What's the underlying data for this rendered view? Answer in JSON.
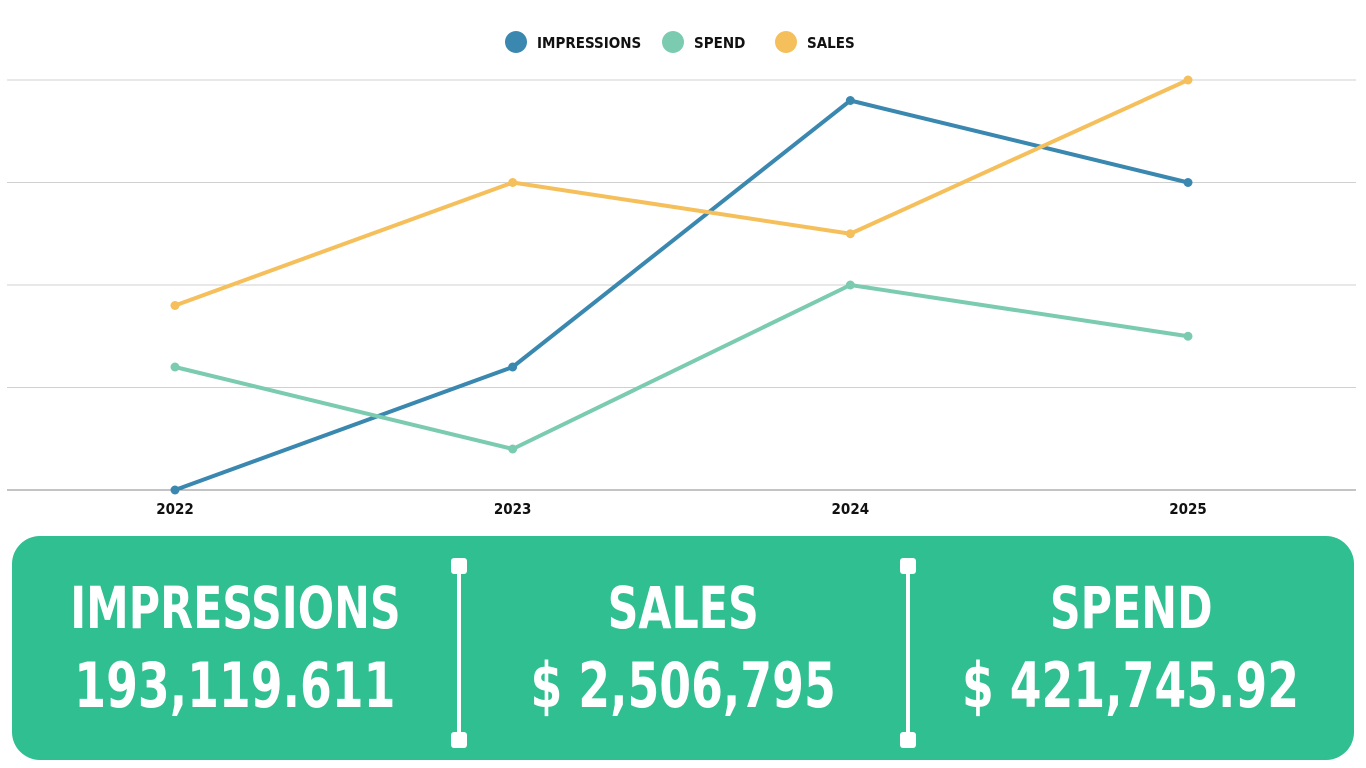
{
  "colors": {
    "impressions": "#3a87b0",
    "spend": "#7acbb0",
    "sales": "#f5bf5b",
    "panel": "#2fbf90",
    "grid": "#d0d0d0",
    "axis": "#888888"
  },
  "chart_data": {
    "type": "line",
    "title": "",
    "xlabel": "",
    "ylabel": "",
    "categories": [
      "2022",
      "2023",
      "2024",
      "2025"
    ],
    "ylim": [
      0,
      4
    ],
    "grid": true,
    "legend_position": "top-center",
    "y_tick_labels_shown": false,
    "series": [
      {
        "name": "IMPRESSIONS",
        "color": "#3a87b0",
        "values": [
          0,
          1.2,
          3.8,
          3.0
        ]
      },
      {
        "name": "SPEND",
        "color": "#7acbb0",
        "values": [
          1.2,
          0.4,
          2.0,
          1.5
        ]
      },
      {
        "name": "SALES",
        "color": "#f5bf5b",
        "values": [
          1.8,
          3.0,
          2.5,
          4.0
        ]
      }
    ]
  },
  "stats": {
    "impressions": {
      "label": "IMPRESSIONS",
      "value": "193,119.611"
    },
    "sales": {
      "label": "SALES",
      "value": "$ 2,506,795"
    },
    "spend": {
      "label": "SPEND",
      "value": "$ 421,745.92"
    }
  }
}
